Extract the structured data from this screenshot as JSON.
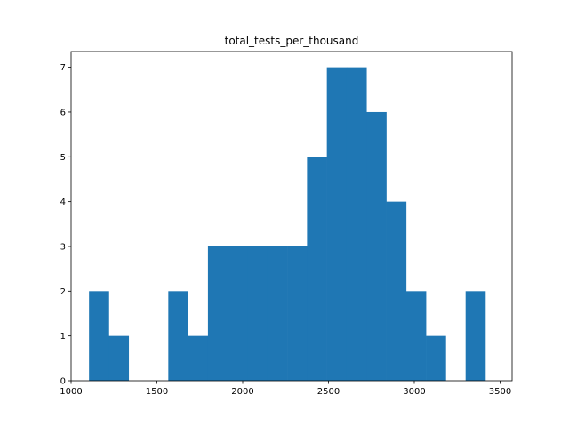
{
  "chart_data": {
    "type": "bar",
    "title": "total_tests_per_thousand",
    "xlabel": "",
    "ylabel": "",
    "bin_edges": [
      1104.5,
      1220.0,
      1335.5,
      1451.0,
      1566.5,
      1682.0,
      1797.5,
      1913.0,
      2028.5,
      2144.0,
      2259.5,
      2375.0,
      2490.5,
      2606.0,
      2721.5,
      2837.0,
      2952.5,
      3068.0,
      3183.5,
      3299.0,
      3414.5
    ],
    "counts": [
      2,
      1,
      0,
      0,
      2,
      1,
      3,
      3,
      3,
      3,
      3,
      5,
      7,
      7,
      6,
      4,
      2,
      1,
      0,
      2
    ],
    "xlim": [
      1000,
      3570
    ],
    "ylim": [
      0,
      7.35
    ],
    "x_ticks": [
      1000,
      1500,
      2000,
      2500,
      3000,
      3500
    ],
    "x_tick_labels": [
      "1000",
      "1500",
      "2000",
      "2500",
      "3000",
      "3500"
    ],
    "y_ticks": [
      0,
      1,
      2,
      3,
      4,
      5,
      6,
      7
    ],
    "y_tick_labels": [
      "0",
      "1",
      "2",
      "3",
      "4",
      "5",
      "6",
      "7"
    ],
    "grid": false,
    "bar_color": "#1f77b4"
  }
}
